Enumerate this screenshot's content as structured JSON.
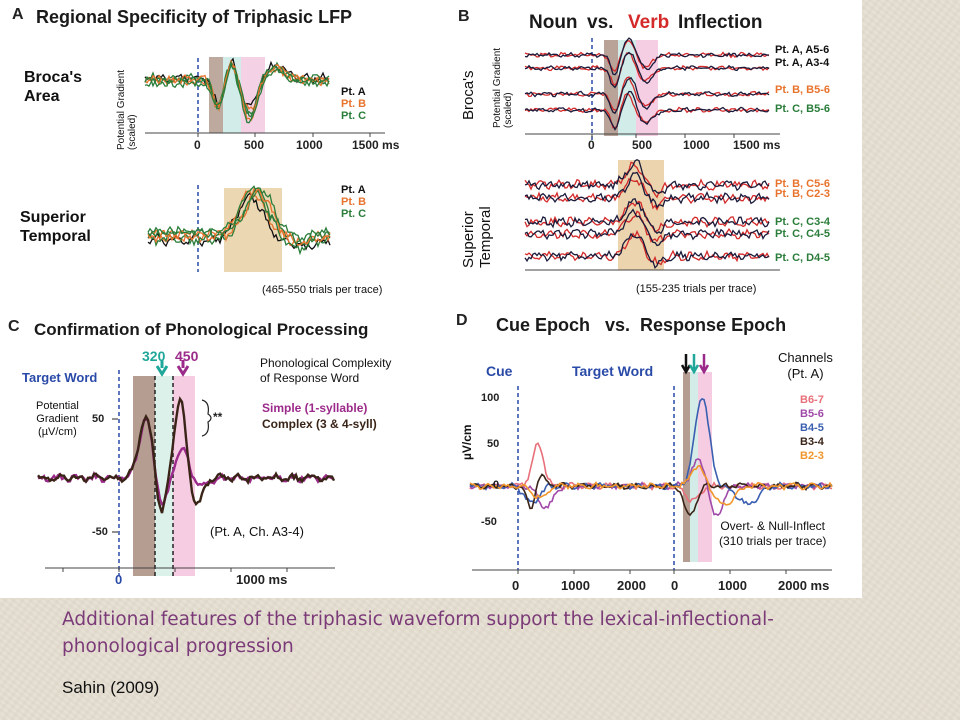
{
  "panelA": {
    "letter": "A",
    "title": "Regional Specificity of Triphasic LFP",
    "row1_label": "Broca's\nArea",
    "row2_label": "Superior\nTemporal",
    "y_label": "Potential Gradient\n(scaled)",
    "legend": [
      {
        "name": "Pt. A",
        "color": "#111111"
      },
      {
        "name": "Pt. B",
        "color": "#e8732d"
      },
      {
        "name": "Pt. C",
        "color": "#2a7d3a"
      }
    ],
    "x_ticks": [
      "0",
      "500",
      "1000",
      "1500 ms"
    ],
    "trials_note": "(465-550 trials per trace)"
  },
  "panelB": {
    "letter": "B",
    "title_noun": "Noun",
    "title_vs": "vs.",
    "title_verb": "Verb",
    "title_rest": "Inflection",
    "row1_label": "Broca's",
    "row2_label": "Superior\nTemporal",
    "y_label": "Potential Gradient\n(scaled)",
    "row1_traces": [
      {
        "label": "Pt. A, A5-6",
        "color": "#111111"
      },
      {
        "label": "Pt. A, A3-4",
        "color": "#111111"
      },
      {
        "label": "Pt. B, B5-6",
        "color": "#e8732d"
      },
      {
        "label": "Pt. C, B5-6",
        "color": "#2a7d3a"
      }
    ],
    "row2_traces": [
      {
        "label": "Pt. B, C5-6",
        "color": "#e8732d"
      },
      {
        "label": "Pt. B, C2-3",
        "color": "#e8732d"
      },
      {
        "label": "Pt. C, C3-4",
        "color": "#2a7d3a"
      },
      {
        "label": "Pt. C, C4-5",
        "color": "#2a7d3a"
      },
      {
        "label": "Pt. C, D4-5",
        "color": "#2a7d3a"
      }
    ],
    "x_ticks": [
      "0",
      "500",
      "1000",
      "1500 ms"
    ],
    "trials_note": "(155-235 trials per trace)"
  },
  "panelC": {
    "letter": "C",
    "title": "Confirmation of Phonological Processing",
    "marker1": "320",
    "marker2": "450",
    "target_word": "Target Word",
    "y_label": "Potential\nGradient\n(µV/cm)",
    "y_ticks": [
      "50",
      "-50"
    ],
    "legend_title": "Phonological Complexity\nof Response Word",
    "legend": [
      {
        "name": "Simple (1-syllable)",
        "color": "#9b2a8a"
      },
      {
        "name": "Complex (3 & 4-syll)",
        "color": "#3a2418"
      }
    ],
    "significance": "**",
    "note": "(Pt. A, Ch. A3-4)",
    "x_ticks": [
      "0",
      "1000 ms"
    ]
  },
  "panelD": {
    "letter": "D",
    "title": "Cue Epoch   vs.  Response Epoch",
    "cue": "Cue",
    "target_word": "Target Word",
    "channels_title": "Channels\n(Pt. A)",
    "channels": [
      {
        "name": "B6-7",
        "color": "#e8707a"
      },
      {
        "name": "B5-6",
        "color": "#a04aa8"
      },
      {
        "name": "B4-5",
        "color": "#3a5fb0"
      },
      {
        "name": "B3-4",
        "color": "#3a2418"
      },
      {
        "name": "B2-3",
        "color": "#f0962d"
      }
    ],
    "y_label": "µV/cm",
    "y_ticks": [
      "100",
      "50",
      "0",
      "-50"
    ],
    "x_ticks_cue": [
      "0",
      "1000",
      "2000"
    ],
    "x_ticks_resp": [
      "0",
      "1000",
      "2000 ms"
    ],
    "note": "Overt- & Null-Inflect\n(310 trials per trace)"
  },
  "caption": "Additional features of the triphasic waveform support the lexical-inflectional-phonological progression",
  "citation": "Sahin (2009)"
}
